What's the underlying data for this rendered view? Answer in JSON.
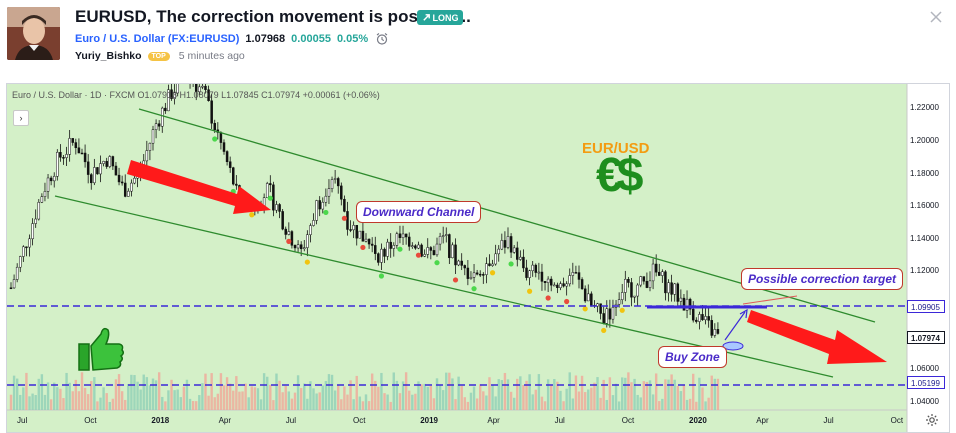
{
  "idea": {
    "title": "EURUSD, The correction movement is possible...",
    "badge": "LONG",
    "symbol_name": "Euro / U.S. Dollar (FX:EURUSD)",
    "price": "1.07968",
    "change": "0.00055",
    "change_pct": "0.05%",
    "author": "Yuriy_Bishko",
    "author_badge": "TOP",
    "time_ago": "5 minutes ago"
  },
  "icons": [
    "avatar",
    "long-arrow-icon",
    "close-icon",
    "alarm-clock-icon",
    "chevron-right-icon",
    "thumbs-up-icon",
    "gear-icon"
  ],
  "colors": {
    "long": "#26a69a",
    "link": "#2962ff",
    "chart_bg": "#d4f0c8",
    "channel": "#2e8b2e",
    "dashed_level": "#3b28d8",
    "arrow": "#ff1a1a"
  },
  "chart": {
    "legend": "Euro / U.S. Dollar · 1D · FXCM  O1.07913 H1.08079 L1.07845 C1.07974 +0.00061 (+0.06%)",
    "annotations": {
      "channel": "Downward Channel",
      "target": "Possible correction target",
      "buy": "Buy Zone",
      "pair": "EUR/USD",
      "symbol": "€$"
    },
    "price_axis": [
      "1.22000",
      "1.20000",
      "1.18000",
      "1.16000",
      "1.14000",
      "1.12000",
      "1.10000",
      "1.08000",
      "1.06000",
      "1.04000"
    ],
    "level_labels": {
      "upper": "1.09905",
      "last": "1.07974",
      "lower": "1.05199"
    },
    "time_axis": [
      {
        "label": "Jul",
        "bold": false
      },
      {
        "label": "Oct",
        "bold": false
      },
      {
        "label": "2018",
        "bold": true
      },
      {
        "label": "Apr",
        "bold": false
      },
      {
        "label": "Jul",
        "bold": false
      },
      {
        "label": "Oct",
        "bold": false
      },
      {
        "label": "2019",
        "bold": true
      },
      {
        "label": "Apr",
        "bold": false
      },
      {
        "label": "Jul",
        "bold": false
      },
      {
        "label": "Oct",
        "bold": false
      },
      {
        "label": "2020",
        "bold": true
      },
      {
        "label": "Apr",
        "bold": false
      },
      {
        "label": "Jul",
        "bold": false
      },
      {
        "label": "Oct",
        "bold": false
      }
    ]
  },
  "chart_data": {
    "type": "line",
    "series": [
      {
        "values": [
          1.11,
          1.14,
          1.17,
          1.19,
          1.2,
          1.18,
          1.19,
          1.17,
          1.18,
          1.21,
          1.23,
          1.24,
          1.23,
          1.2,
          1.17,
          1.16,
          1.17,
          1.15,
          1.13,
          1.16,
          1.18,
          1.15,
          1.14,
          1.13,
          1.14,
          1.14,
          1.13,
          1.14,
          1.12,
          1.12,
          1.13,
          1.14,
          1.12,
          1.12,
          1.11,
          1.12,
          1.1,
          1.09,
          1.11,
          1.11,
          1.12,
          1.11,
          1.1,
          1.09,
          1.08
        ]
      }
    ],
    "ylim": [
      1.035,
      1.235
    ],
    "levels": [
      1.09905,
      1.05199
    ],
    "last": 1.07974
  }
}
